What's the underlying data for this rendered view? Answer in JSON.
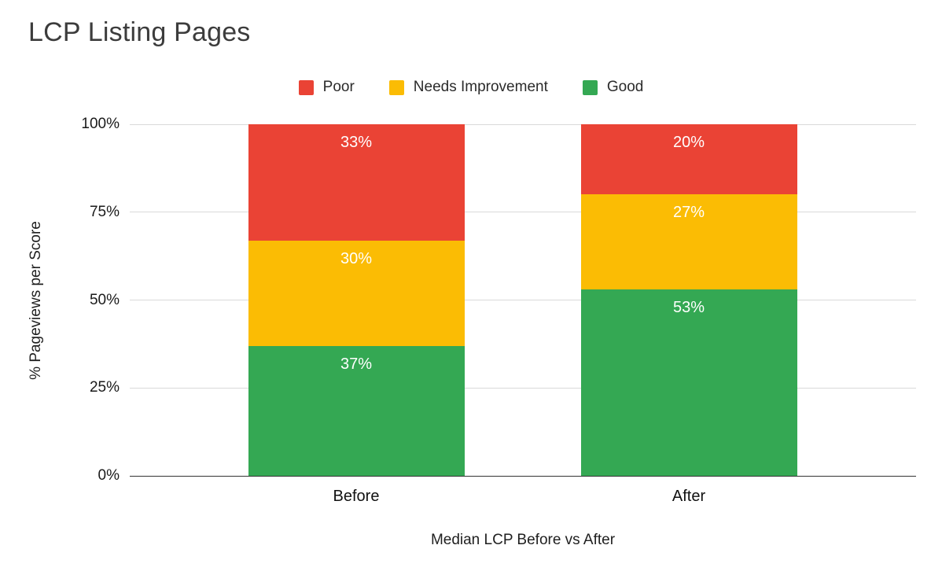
{
  "chart_data": {
    "type": "bar",
    "stacked": true,
    "percent_stacked": true,
    "title": "LCP Listing Pages",
    "categories": [
      "Before",
      "After"
    ],
    "series": [
      {
        "name": "Poor",
        "color": "#ea4335",
        "values": [
          33,
          20
        ]
      },
      {
        "name": "Needs Improvement",
        "color": "#fbbc04",
        "values": [
          30,
          27
        ]
      },
      {
        "name": "Good",
        "color": "#34a853",
        "values": [
          37,
          53
        ]
      }
    ],
    "xlabel": "Median LCP Before vs After",
    "ylabel": "% Pageviews per Score",
    "y_ticks": [
      "0%",
      "25%",
      "50%",
      "75%",
      "100%"
    ],
    "ylim": [
      0,
      100
    ],
    "grid": "horizontal",
    "legend_position": "top",
    "value_label_suffix": "%"
  }
}
